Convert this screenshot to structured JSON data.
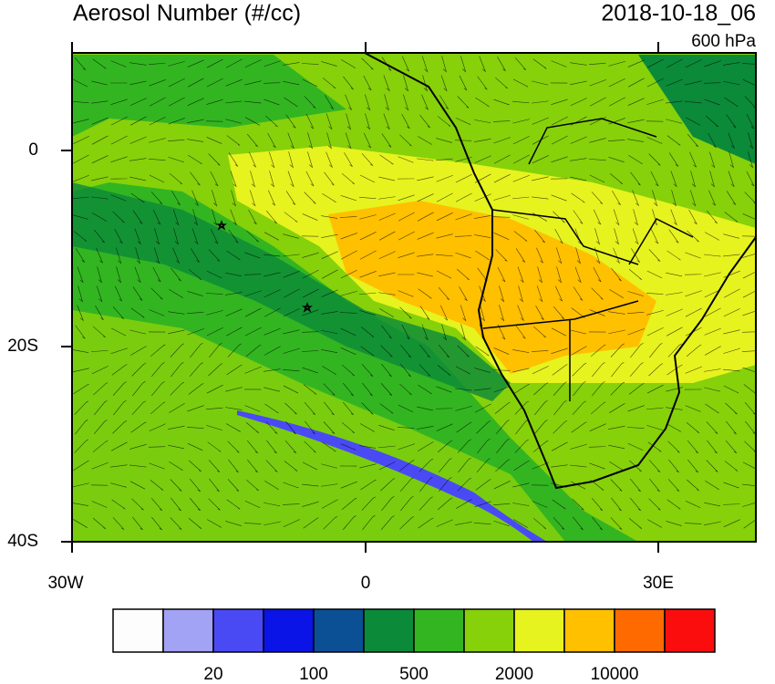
{
  "header": {
    "title": "Aerosol Number (#/cc)",
    "time": "2018-10-18_06",
    "level": "600 hPa"
  },
  "axes": {
    "y_labels": [
      "0",
      "20S",
      "40S"
    ],
    "x_labels": [
      "30W",
      "0",
      "30E"
    ]
  },
  "colorbar": {
    "colors": [
      "#fdfdfd",
      "#a3a3f5",
      "#4a4af5",
      "#0a14e6",
      "#0b4f95",
      "#0b8a3a",
      "#33b521",
      "#86d10a",
      "#e6f31e",
      "#ffc000",
      "#ff6a00",
      "#fb0d0d"
    ],
    "labels": [
      "20",
      "100",
      "500",
      "2000",
      "10000"
    ]
  }
}
